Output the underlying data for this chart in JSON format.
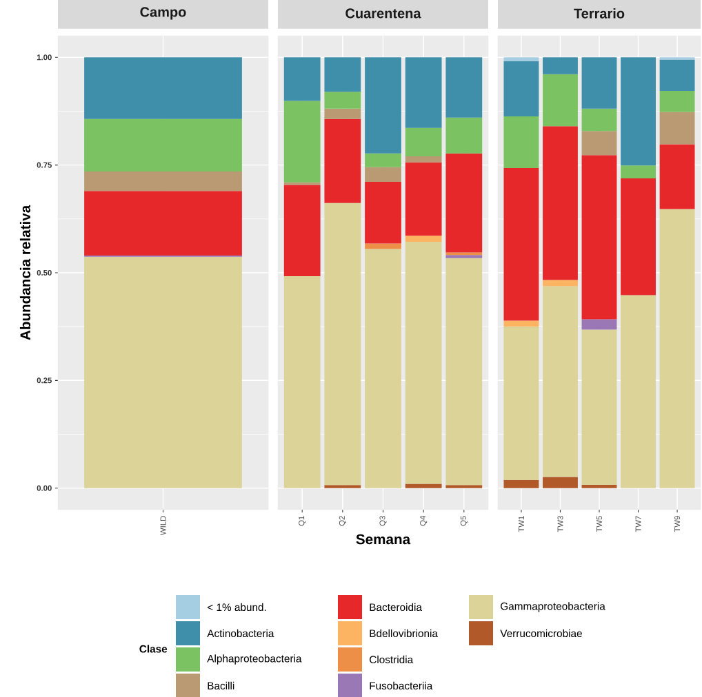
{
  "chart_data": [
    {
      "type": "bar",
      "title": "Campo",
      "ylabel": "Abundancia relativa",
      "stacked": true,
      "grid": true,
      "legend": "bottom",
      "legend_title": "Clase",
      "categories": [
        "WILD"
      ],
      "ylim": [
        -0.05,
        1.05
      ],
      "yticks": [
        {
          "value": 0,
          "label": "0.00"
        },
        {
          "value": 0.25,
          "label": "0.25"
        },
        {
          "value": 0.5,
          "label": "0.50"
        },
        {
          "value": 0.75,
          "label": "0.75"
        },
        {
          "value": 1,
          "label": "1.00"
        }
      ],
      "series": [
        {
          "name": "Verrucomicrobiae",
          "color": "#b15928",
          "values": [
            null
          ]
        },
        {
          "name": "Gammaproteobacteria",
          "color": "#dcd399",
          "values": [
            0.537
          ]
        },
        {
          "name": "Fusobacteriia",
          "color": "#9a77b5",
          "values": [
            0.003
          ]
        },
        {
          "name": "Clostridia",
          "color": "#ee8f47",
          "values": [
            null
          ]
        },
        {
          "name": "Bdellovibrionia",
          "color": "#fdb462",
          "values": [
            null
          ]
        },
        {
          "name": "Bacteroidia",
          "color": "#e6282b",
          "values": [
            0.15
          ]
        },
        {
          "name": "Bacilli",
          "color": "#b99a73",
          "values": [
            0.045
          ]
        },
        {
          "name": "Alphaproteobacteria",
          "color": "#7bc362",
          "values": [
            0.122
          ]
        },
        {
          "name": "Actinobacteria",
          "color": "#3f8eaa",
          "values": [
            0.143
          ]
        },
        {
          "name": "< 1% abund.",
          "color": "#a6cee3",
          "values": [
            null
          ]
        }
      ]
    },
    {
      "type": "bar",
      "title": "Cuarentena",
      "xlabel": "Semana",
      "stacked": true,
      "grid": true,
      "tick_labels": "x",
      "categories": [
        "Q1",
        "Q2",
        "Q3",
        "Q4",
        "Q5"
      ],
      "ylim": [
        -0.05,
        1.05
      ],
      "yticks": [
        {
          "value": 0,
          "label": null
        },
        {
          "value": 0.25,
          "label": null
        },
        {
          "value": 0.5,
          "label": null
        },
        {
          "value": 0.75,
          "label": null
        },
        {
          "value": 1,
          "label": null
        }
      ],
      "series": [
        {
          "color": "#b15928",
          "values": [
            null,
            0.007,
            null,
            0.01,
            0.007
          ]
        },
        {
          "color": "#dcd399",
          "values": [
            0.492,
            0.655,
            0.555,
            0.562,
            0.527
          ]
        },
        {
          "color": "#9a77b5",
          "values": [
            null,
            null,
            null,
            null,
            0.007
          ]
        },
        {
          "color": "#ee8f47",
          "values": [
            null,
            null,
            0.013,
            null,
            0.006
          ]
        },
        {
          "color": "#fdb462",
          "values": [
            null,
            null,
            null,
            0.014,
            null
          ]
        },
        {
          "color": "#e6282b",
          "values": [
            0.212,
            0.195,
            0.143,
            0.17,
            0.23
          ]
        },
        {
          "color": "#b99a73",
          "values": [
            0.006,
            0.024,
            0.034,
            0.014,
            null
          ]
        },
        {
          "color": "#7bc362",
          "values": [
            0.189,
            0.039,
            0.032,
            0.066,
            0.083
          ]
        },
        {
          "color": "#3f8eaa",
          "values": [
            0.101,
            0.08,
            0.223,
            0.164,
            0.14
          ]
        }
      ]
    },
    {
      "type": "bar",
      "title": "Terrario",
      "stacked": true,
      "grid": true,
      "tick_labels": "x",
      "categories": [
        "TW1",
        "TW3",
        "TW5",
        "TW7",
        "TW9"
      ],
      "ylim": [
        -0.05,
        1.05
      ],
      "yticks": [
        {
          "value": 0,
          "label": null
        },
        {
          "value": 0.25,
          "label": null
        },
        {
          "value": 0.5,
          "label": null
        },
        {
          "value": 0.75,
          "label": null
        },
        {
          "value": 1,
          "label": null
        }
      ],
      "series": [
        {
          "color": "#b15928",
          "values": [
            0.019,
            0.026,
            0.008,
            null,
            null
          ]
        },
        {
          "color": "#dcd399",
          "values": [
            0.356,
            0.443,
            0.36,
            0.448,
            0.648
          ]
        },
        {
          "color": "#9a77b5",
          "values": [
            null,
            null,
            0.024,
            null,
            null
          ]
        },
        {
          "color": "#fdb462",
          "values": [
            0.014,
            0.014,
            null,
            null,
            null
          ]
        },
        {
          "color": "#e6282b",
          "values": [
            0.354,
            0.357,
            0.381,
            0.271,
            0.15
          ]
        },
        {
          "color": "#b99a73",
          "values": [
            null,
            null,
            0.056,
            null,
            0.075
          ]
        },
        {
          "color": "#7bc362",
          "values": [
            0.12,
            0.121,
            0.052,
            0.03,
            0.049
          ]
        },
        {
          "color": "#3f8eaa",
          "values": [
            0.128,
            0.039,
            0.119,
            0.251,
            0.073
          ]
        },
        {
          "color": "#a6cee3",
          "values": [
            0.009,
            null,
            null,
            null,
            0.005
          ]
        }
      ]
    }
  ]
}
